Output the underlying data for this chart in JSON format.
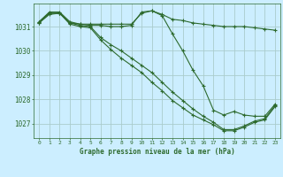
{
  "title": "Graphe pression niveau de la mer (hPa)",
  "background_color": "#cceeff",
  "grid_color": "#aacccc",
  "line_color": "#2d6a2d",
  "xlim": [
    -0.5,
    23.5
  ],
  "ylim": [
    1026.4,
    1031.95
  ],
  "yticks": [
    1027,
    1028,
    1029,
    1030,
    1031
  ],
  "xticks": [
    0,
    1,
    2,
    3,
    4,
    5,
    6,
    7,
    8,
    9,
    10,
    11,
    12,
    13,
    14,
    15,
    16,
    17,
    18,
    19,
    20,
    21,
    22,
    23
  ],
  "series": [
    [
      1031.15,
      1031.55,
      1031.55,
      1031.15,
      1031.1,
      1031.1,
      1031.1,
      1031.1,
      1031.1,
      1031.1,
      1031.55,
      1031.65,
      1031.5,
      1031.3,
      1031.25,
      1031.15,
      1031.1,
      1031.05,
      1031.0,
      1031.0,
      1031.0,
      1030.95,
      1030.9,
      1030.85
    ],
    [
      1031.2,
      1031.6,
      1031.6,
      1031.2,
      1031.1,
      1031.05,
      1031.05,
      1031.0,
      1031.0,
      1031.05,
      1031.6,
      1031.65,
      1031.45,
      1030.7,
      1030.0,
      1029.2,
      1028.55,
      1027.55,
      1027.35,
      1027.5,
      1027.35,
      1027.3,
      1027.3,
      1027.8
    ],
    [
      1031.2,
      1031.55,
      1031.55,
      1031.15,
      1031.05,
      1031.0,
      1030.55,
      1030.25,
      1030.0,
      1029.7,
      1029.4,
      1029.1,
      1028.7,
      1028.3,
      1027.95,
      1027.6,
      1027.3,
      1027.05,
      1026.75,
      1026.75,
      1026.9,
      1027.1,
      1027.2,
      1027.75
    ],
    [
      1031.15,
      1031.5,
      1031.55,
      1031.1,
      1031.0,
      1030.95,
      1030.45,
      1030.05,
      1029.7,
      1029.4,
      1029.1,
      1028.7,
      1028.35,
      1027.95,
      1027.65,
      1027.35,
      1027.15,
      1026.95,
      1026.7,
      1026.7,
      1026.85,
      1027.05,
      1027.15,
      1027.7
    ]
  ]
}
